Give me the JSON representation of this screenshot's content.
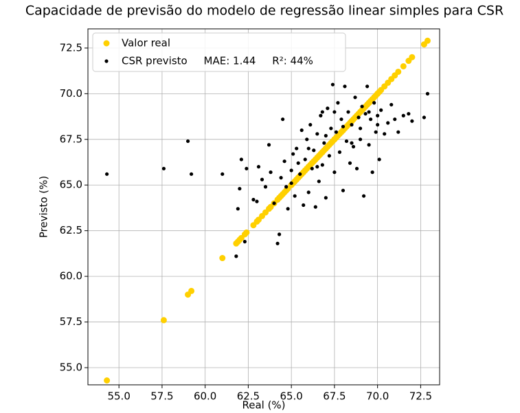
{
  "chart_data": {
    "type": "scatter",
    "title": "Capacidade de previsão do modelo de regressão linear simples para CSR",
    "x_label": "Real (%)",
    "y_label": "Previsto (%)",
    "x": [
      54.3,
      57.6,
      59.0,
      59.2,
      61.0,
      61.8,
      61.9,
      62.0,
      62.1,
      62.3,
      62.4,
      62.8,
      63.0,
      63.1,
      63.5,
      63.7,
      63.8,
      64.0,
      64.2,
      64.3,
      64.4,
      64.5,
      64.6,
      64.8,
      65.0,
      65.1,
      65.2,
      65.3,
      65.5,
      65.6,
      65.7,
      65.8,
      65.9,
      66.0,
      66.1,
      66.2,
      66.3,
      66.4,
      66.5,
      66.6,
      66.7,
      66.8,
      66.9,
      67.0,
      67.1,
      67.2,
      67.3,
      67.4,
      67.5,
      67.6,
      67.7,
      67.8,
      67.9,
      68.0,
      68.1,
      68.2,
      68.3,
      68.4,
      68.5,
      68.6,
      68.7,
      68.8,
      68.9,
      69.0,
      69.1,
      69.2,
      69.3,
      69.4,
      69.5,
      69.6,
      69.7,
      69.8,
      69.9,
      70.0,
      70.1,
      70.2,
      70.4,
      70.6,
      70.8,
      71.0,
      71.2,
      71.5,
      71.8,
      72.0,
      72.7,
      72.9,
      63.3,
      64.7,
      65.4,
      66.0,
      67.0,
      68.0,
      69.0,
      70.0,
      67.5,
      66.5,
      68.5,
      69.5,
      65.0,
      66.8
    ],
    "series": [
      {
        "name": "Valor real",
        "color": "#ffd000",
        "values": [
          54.3,
          57.6,
          59.0,
          59.2,
          61.0,
          61.8,
          61.9,
          62.0,
          62.1,
          62.3,
          62.4,
          62.8,
          63.0,
          63.1,
          63.5,
          63.7,
          63.8,
          64.0,
          64.2,
          64.3,
          64.4,
          64.5,
          64.6,
          64.8,
          65.0,
          65.1,
          65.2,
          65.3,
          65.5,
          65.6,
          65.7,
          65.8,
          65.9,
          66.0,
          66.1,
          66.2,
          66.3,
          66.4,
          66.5,
          66.6,
          66.7,
          66.8,
          66.9,
          67.0,
          67.1,
          67.2,
          67.3,
          67.4,
          67.5,
          67.6,
          67.7,
          67.8,
          67.9,
          68.0,
          68.1,
          68.2,
          68.3,
          68.4,
          68.5,
          68.6,
          68.7,
          68.8,
          68.9,
          69.0,
          69.1,
          69.2,
          69.3,
          69.4,
          69.5,
          69.6,
          69.7,
          69.8,
          69.9,
          70.0,
          70.1,
          70.2,
          70.4,
          70.6,
          70.8,
          71.0,
          71.2,
          71.5,
          71.8,
          72.0,
          72.7,
          72.9,
          63.3,
          64.7,
          65.4,
          66.0,
          67.0,
          68.0,
          69.0,
          70.0,
          67.5,
          66.5,
          68.5,
          69.5,
          65.0,
          66.8
        ]
      },
      {
        "name": "CSR previsto     MAE: 1.44     R²: 44%",
        "color": "#000000",
        "values": [
          65.6,
          65.9,
          67.4,
          65.6,
          65.6,
          61.1,
          63.7,
          64.8,
          66.4,
          61.9,
          65.9,
          64.2,
          64.1,
          66.0,
          64.9,
          67.2,
          65.7,
          64.0,
          61.8,
          62.3,
          65.4,
          68.6,
          66.3,
          63.7,
          65.1,
          66.7,
          64.4,
          67.0,
          65.6,
          68.0,
          63.9,
          66.4,
          67.5,
          64.6,
          68.3,
          65.9,
          66.9,
          63.8,
          67.8,
          65.2,
          68.8,
          66.1,
          67.3,
          64.3,
          69.2,
          66.6,
          68.1,
          70.5,
          65.7,
          67.9,
          69.5,
          66.8,
          68.6,
          64.7,
          70.4,
          67.4,
          69.0,
          66.2,
          68.3,
          67.1,
          69.8,
          65.9,
          68.7,
          67.5,
          69.3,
          64.4,
          68.9,
          70.4,
          67.2,
          68.6,
          65.7,
          69.5,
          67.9,
          68.8,
          66.4,
          69.1,
          67.8,
          68.4,
          69.4,
          68.6,
          67.9,
          68.8,
          68.9,
          68.5,
          68.7,
          70.0,
          65.3,
          64.9,
          66.2,
          67.0,
          67.7,
          68.2,
          68.1,
          68.3,
          69.0,
          66.0,
          67.3,
          69.0,
          65.8,
          69.0
        ]
      }
    ],
    "xlim": [
      53.2,
      73.6
    ],
    "ylim": [
      54.06,
      73.55
    ],
    "xticks": [
      {
        "value": 55,
        "label": "55.0"
      },
      57.5,
      {
        "value": 60,
        "label": "60.0"
      },
      62.5,
      {
        "value": 65,
        "label": "65.0"
      },
      67.5,
      {
        "value": 70,
        "label": "70.0"
      },
      72.5
    ],
    "yticks": [
      {
        "value": 55,
        "label": "55.0"
      },
      57.5,
      {
        "value": 60,
        "label": "60.0"
      },
      62.5,
      {
        "value": 65,
        "label": "65.0"
      },
      67.5,
      {
        "value": 70,
        "label": "70.0"
      },
      72.5
    ],
    "grid": true,
    "legend": "upper left"
  }
}
